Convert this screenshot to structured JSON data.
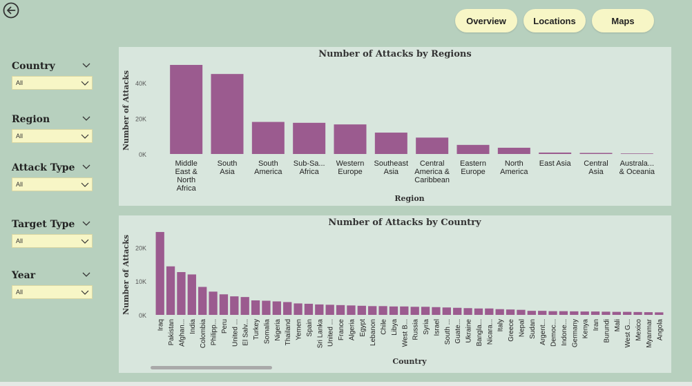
{
  "nav": {
    "overview": "Overview",
    "locations": "Locations",
    "maps": "Maps"
  },
  "filters": [
    {
      "label": "Country",
      "value": "All"
    },
    {
      "label": "Region",
      "value": "All"
    },
    {
      "label": "Attack Type",
      "value": "All"
    },
    {
      "label": "Target Type",
      "value": "All"
    },
    {
      "label": "Year",
      "value": "All"
    }
  ],
  "colors": {
    "bar": "#9b5b8f",
    "panel": "#d8e6dd",
    "background": "#b7d0be",
    "button": "#f7f6c6"
  },
  "icons": {
    "back": "back-arrow-icon",
    "dropdown": "chevron-down-icon"
  },
  "chart_data": [
    {
      "type": "bar",
      "title": "Number of Attacks by Regions",
      "xlabel": "Region",
      "ylabel": "Number of Attacks",
      "ylim": [
        0,
        50000
      ],
      "yticks": [
        0,
        20000,
        40000
      ],
      "ytick_labels": [
        "0K",
        "20K",
        "40K"
      ],
      "categories": [
        [
          "Middle",
          "East &",
          "North",
          "Africa"
        ],
        [
          "South",
          "Asia"
        ],
        [
          "South",
          "America"
        ],
        [
          "Sub-Sa...",
          "Africa"
        ],
        [
          "Western",
          "Europe"
        ],
        [
          "Southeast",
          "Asia"
        ],
        [
          "Central",
          "America &",
          "Caribbean"
        ],
        [
          "Eastern",
          "Europe"
        ],
        [
          "North",
          "America"
        ],
        [
          "East Asia"
        ],
        [
          "Central",
          "Asia"
        ],
        [
          "Australa...",
          "& Oceania"
        ]
      ],
      "values": [
        50000,
        44900,
        18000,
        17500,
        16600,
        12000,
        9200,
        5100,
        3500,
        800,
        600,
        300
      ]
    },
    {
      "type": "bar",
      "title": "Number of Attacks by Country",
      "xlabel": "Country",
      "ylabel": "Number of Attacks",
      "ylim": [
        0,
        25000
      ],
      "yticks": [
        0,
        10000,
        20000
      ],
      "ytick_labels": [
        "0K",
        "10K",
        "20K"
      ],
      "categories": [
        "Iraq",
        "Pakistan",
        "Afghan...",
        "India",
        "Colombia",
        "Philipp...",
        "Peru",
        "United ...",
        "El Salv...",
        "Turkey",
        "Somalia",
        "Nigeria",
        "Thailand",
        "Yemen",
        "Spain",
        "Sri Lanka",
        "United ...",
        "France",
        "Algeria",
        "Egypt",
        "Lebanon",
        "Chile",
        "Libya",
        "West B...",
        "Russia",
        "Syria",
        "Israel",
        "South ...",
        "Guate...",
        "Ukraine",
        "Bangla...",
        "Nicara...",
        "Italy",
        "Greece",
        "Nepal",
        "Sudan",
        "Argent...",
        "Democ...",
        "Indone...",
        "Germany",
        "Kenya",
        "Iran",
        "Burundi",
        "Mali",
        "West G...",
        "Mexico",
        "Myanmar",
        "Angola"
      ],
      "values": [
        24600,
        14400,
        12700,
        12000,
        8300,
        6900,
        6100,
        5500,
        5300,
        4300,
        4200,
        4000,
        3800,
        3400,
        3300,
        3100,
        3000,
        2900,
        2800,
        2700,
        2600,
        2600,
        2500,
        2500,
        2400,
        2400,
        2300,
        2200,
        2100,
        2000,
        1900,
        1900,
        1700,
        1600,
        1500,
        1200,
        1200,
        1100,
        1100,
        1050,
        1000,
        1000,
        950,
        900,
        900,
        850,
        800,
        750
      ]
    }
  ]
}
